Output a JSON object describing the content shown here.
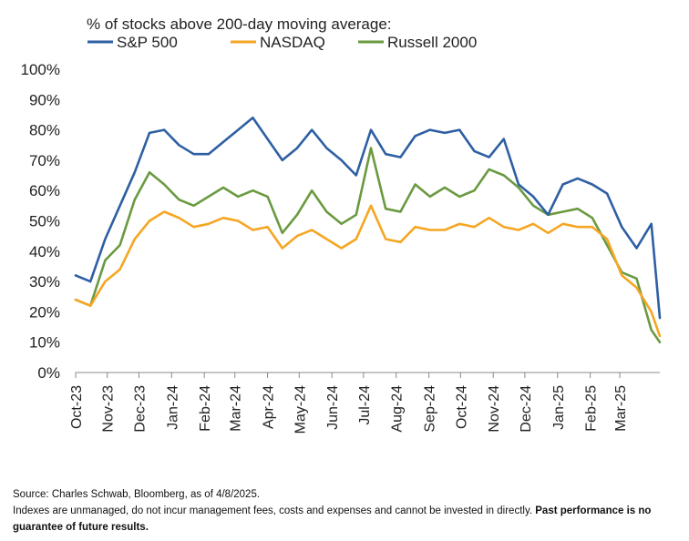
{
  "chart_data": {
    "type": "line",
    "title": "% of stocks above 200-day moving average:",
    "ylim": [
      0,
      100
    ],
    "y_ticks": [
      "0%",
      "10%",
      "20%",
      "30%",
      "40%",
      "50%",
      "60%",
      "70%",
      "80%",
      "90%",
      "100%"
    ],
    "x_ticks": [
      "Oct-23",
      "Nov-23",
      "Dec-23",
      "Jan-24",
      "Feb-24",
      "Mar-24",
      "Apr-24",
      "May-24",
      "Jun-24",
      "Jul-24",
      "Aug-24",
      "Sep-24",
      "Oct-24",
      "Nov-24",
      "Dec-24",
      "Jan-25",
      "Feb-25",
      "Mar-25"
    ],
    "grid": "none",
    "legend_position": "top-left",
    "x": [
      "2023-10-02",
      "2023-10-16",
      "2023-10-30",
      "2023-11-13",
      "2023-11-27",
      "2023-12-11",
      "2023-12-25",
      "2024-01-08",
      "2024-01-22",
      "2024-02-05",
      "2024-02-19",
      "2024-03-04",
      "2024-03-18",
      "2024-04-01",
      "2024-04-15",
      "2024-04-29",
      "2024-05-13",
      "2024-05-27",
      "2024-06-10",
      "2024-06-24",
      "2024-07-08",
      "2024-07-22",
      "2024-08-05",
      "2024-08-19",
      "2024-09-02",
      "2024-09-16",
      "2024-09-30",
      "2024-10-14",
      "2024-10-28",
      "2024-11-11",
      "2024-11-25",
      "2024-12-09",
      "2024-12-23",
      "2025-01-06",
      "2025-01-20",
      "2025-02-03",
      "2025-02-17",
      "2025-03-03",
      "2025-03-17",
      "2025-03-31",
      "2025-04-08"
    ],
    "series": [
      {
        "name": "S&P 500",
        "color": "#2e5fa3",
        "values": [
          32,
          30,
          44,
          55,
          66,
          79,
          80,
          75,
          72,
          72,
          76,
          80,
          84,
          77,
          70,
          74,
          80,
          74,
          70,
          65,
          80,
          72,
          71,
          78,
          80,
          79,
          80,
          73,
          71,
          77,
          62,
          58,
          52,
          62,
          64,
          62,
          59,
          48,
          41,
          49,
          18
        ]
      },
      {
        "name": "NASDAQ",
        "color": "#f5a623",
        "values": [
          24,
          22,
          30,
          34,
          44,
          50,
          53,
          51,
          48,
          49,
          51,
          50,
          47,
          48,
          41,
          45,
          47,
          44,
          41,
          44,
          55,
          44,
          43,
          48,
          47,
          47,
          49,
          48,
          51,
          48,
          47,
          49,
          46,
          49,
          48,
          48,
          44,
          32,
          28,
          20,
          12
        ]
      },
      {
        "name": "Russell 2000",
        "color": "#6a9a40",
        "values": [
          24,
          22,
          37,
          42,
          57,
          66,
          62,
          57,
          55,
          58,
          61,
          58,
          60,
          58,
          46,
          52,
          60,
          53,
          49,
          52,
          74,
          54,
          53,
          62,
          58,
          61,
          58,
          60,
          67,
          65,
          61,
          55,
          52,
          53,
          54,
          51,
          42,
          33,
          31,
          14,
          10
        ]
      }
    ]
  },
  "footnotes": {
    "source": "Source: Charles Schwab, Bloomberg, as of 4/8/2025.",
    "disclaimer": "Indexes are unmanaged, do not incur management fees, costs and expenses and cannot be invested in directly.",
    "disclaimer_bold": "Past performance is no guarantee of future results."
  }
}
